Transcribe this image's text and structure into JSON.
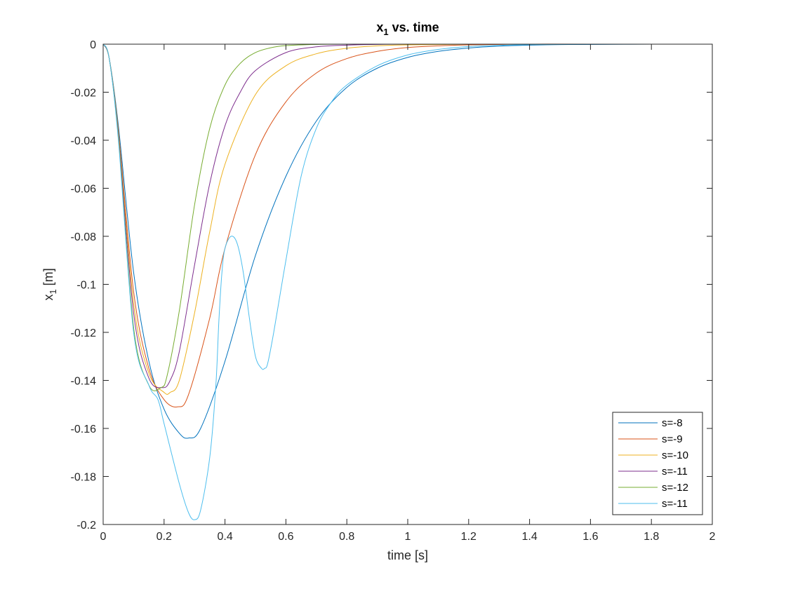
{
  "chart_data": {
    "type": "line",
    "title": "x",
    "title_sub": "1",
    "title_rest": " vs. time",
    "xlabel": "time [s]",
    "ylabel": "x",
    "ylabel_sub": "1",
    "ylabel_rest": " [m]",
    "xlim": [
      0,
      2
    ],
    "ylim": [
      -0.2,
      0
    ],
    "xticks": [
      0,
      0.2,
      0.4,
      0.6,
      0.8,
      1,
      1.2,
      1.4,
      1.6,
      1.8,
      2
    ],
    "xtick_labels": [
      "0",
      "0.2",
      "0.4",
      "0.6",
      "0.8",
      "1",
      "1.2",
      "1.4",
      "1.6",
      "1.8",
      "2"
    ],
    "yticks": [
      0,
      -0.02,
      -0.04,
      -0.06,
      -0.08,
      -0.1,
      -0.12,
      -0.14,
      -0.16,
      -0.18,
      -0.2
    ],
    "ytick_labels": [
      "0",
      "-0.02",
      "-0.04",
      "-0.06",
      "-0.08",
      "-0.1",
      "-0.12",
      "-0.14",
      "-0.16",
      "-0.18",
      "-0.2"
    ],
    "grid": false,
    "legend_position": "bottom-right",
    "series": [
      {
        "name": "s=-8",
        "color": "#0072BD",
        "x": [
          0,
          0.02,
          0.05,
          0.1,
          0.15,
          0.2,
          0.25,
          0.28,
          0.32,
          0.4,
          0.5,
          0.6,
          0.7,
          0.8,
          0.9,
          1.0,
          1.1,
          1.2,
          1.3,
          1.4,
          1.5,
          1.6,
          1.8,
          2.0
        ],
        "y": [
          0,
          -0.006,
          -0.034,
          -0.095,
          -0.132,
          -0.152,
          -0.162,
          -0.164,
          -0.16,
          -0.132,
          -0.088,
          -0.055,
          -0.032,
          -0.018,
          -0.01,
          -0.0055,
          -0.003,
          -0.0016,
          -0.0008,
          -0.0004,
          -0.0002,
          -0.0001,
          0,
          0
        ]
      },
      {
        "name": "s=-9",
        "color": "#D95319",
        "x": [
          0,
          0.02,
          0.05,
          0.1,
          0.15,
          0.2,
          0.245,
          0.28,
          0.35,
          0.4,
          0.5,
          0.6,
          0.7,
          0.8,
          0.9,
          1.0,
          1.1,
          1.2,
          1.4,
          1.6,
          2.0
        ],
        "y": [
          0,
          -0.006,
          -0.036,
          -0.103,
          -0.135,
          -0.148,
          -0.151,
          -0.146,
          -0.114,
          -0.085,
          -0.046,
          -0.024,
          -0.012,
          -0.006,
          -0.003,
          -0.0014,
          -0.0007,
          -0.0003,
          0,
          0,
          0
        ]
      },
      {
        "name": "s=-10",
        "color": "#EDB120",
        "x": [
          0,
          0.02,
          0.05,
          0.1,
          0.15,
          0.2,
          0.22,
          0.25,
          0.3,
          0.35,
          0.4,
          0.5,
          0.6,
          0.7,
          0.8,
          0.9,
          1.0,
          1.2,
          1.5,
          2.0
        ],
        "y": [
          0,
          -0.006,
          -0.037,
          -0.108,
          -0.137,
          -0.145,
          -0.145,
          -0.14,
          -0.112,
          -0.078,
          -0.05,
          -0.021,
          -0.009,
          -0.004,
          -0.0017,
          -0.0007,
          -0.0003,
          0,
          0,
          0
        ]
      },
      {
        "name": "s=-11",
        "color": "#7E2F8E",
        "x": [
          0,
          0.02,
          0.05,
          0.1,
          0.15,
          0.195,
          0.22,
          0.25,
          0.3,
          0.35,
          0.4,
          0.45,
          0.5,
          0.6,
          0.7,
          0.8,
          0.9,
          1.0,
          1.2,
          2.0
        ],
        "y": [
          0,
          -0.006,
          -0.038,
          -0.112,
          -0.139,
          -0.143,
          -0.14,
          -0.128,
          -0.092,
          -0.058,
          -0.034,
          -0.02,
          -0.011,
          -0.0035,
          -0.0011,
          -0.0004,
          -0.0001,
          0,
          0,
          0
        ]
      },
      {
        "name": "s=-12",
        "color": "#77AC30",
        "x": [
          0,
          0.02,
          0.05,
          0.1,
          0.15,
          0.19,
          0.21,
          0.25,
          0.3,
          0.35,
          0.4,
          0.45,
          0.5,
          0.55,
          0.6,
          0.7,
          0.8,
          1.0,
          2.0
        ],
        "y": [
          0,
          -0.006,
          -0.039,
          -0.118,
          -0.142,
          -0.143,
          -0.138,
          -0.111,
          -0.067,
          -0.035,
          -0.017,
          -0.008,
          -0.0035,
          -0.0015,
          -0.0006,
          -0.0001,
          0,
          0,
          0
        ]
      },
      {
        "name": "s=-11",
        "color": "#4DBEEE",
        "x": [
          0,
          0.02,
          0.05,
          0.1,
          0.15,
          0.18,
          0.2,
          0.25,
          0.28,
          0.3,
          0.32,
          0.35,
          0.37,
          0.38,
          0.39,
          0.4,
          0.42,
          0.44,
          0.46,
          0.48,
          0.5,
          0.52,
          0.53,
          0.54,
          0.56,
          0.6,
          0.65,
          0.7,
          0.75,
          0.8,
          0.9,
          1.0,
          1.1,
          1.2,
          1.3,
          1.4,
          1.6,
          2.0
        ],
        "y": [
          0,
          -0.006,
          -0.04,
          -0.12,
          -0.142,
          -0.148,
          -0.158,
          -0.183,
          -0.195,
          -0.198,
          -0.194,
          -0.172,
          -0.142,
          -0.115,
          -0.095,
          -0.085,
          -0.08,
          -0.083,
          -0.095,
          -0.114,
          -0.13,
          -0.135,
          -0.135,
          -0.133,
          -0.12,
          -0.09,
          -0.055,
          -0.035,
          -0.024,
          -0.017,
          -0.009,
          -0.0045,
          -0.0022,
          -0.001,
          -0.0005,
          -0.0002,
          0,
          0
        ]
      }
    ]
  }
}
